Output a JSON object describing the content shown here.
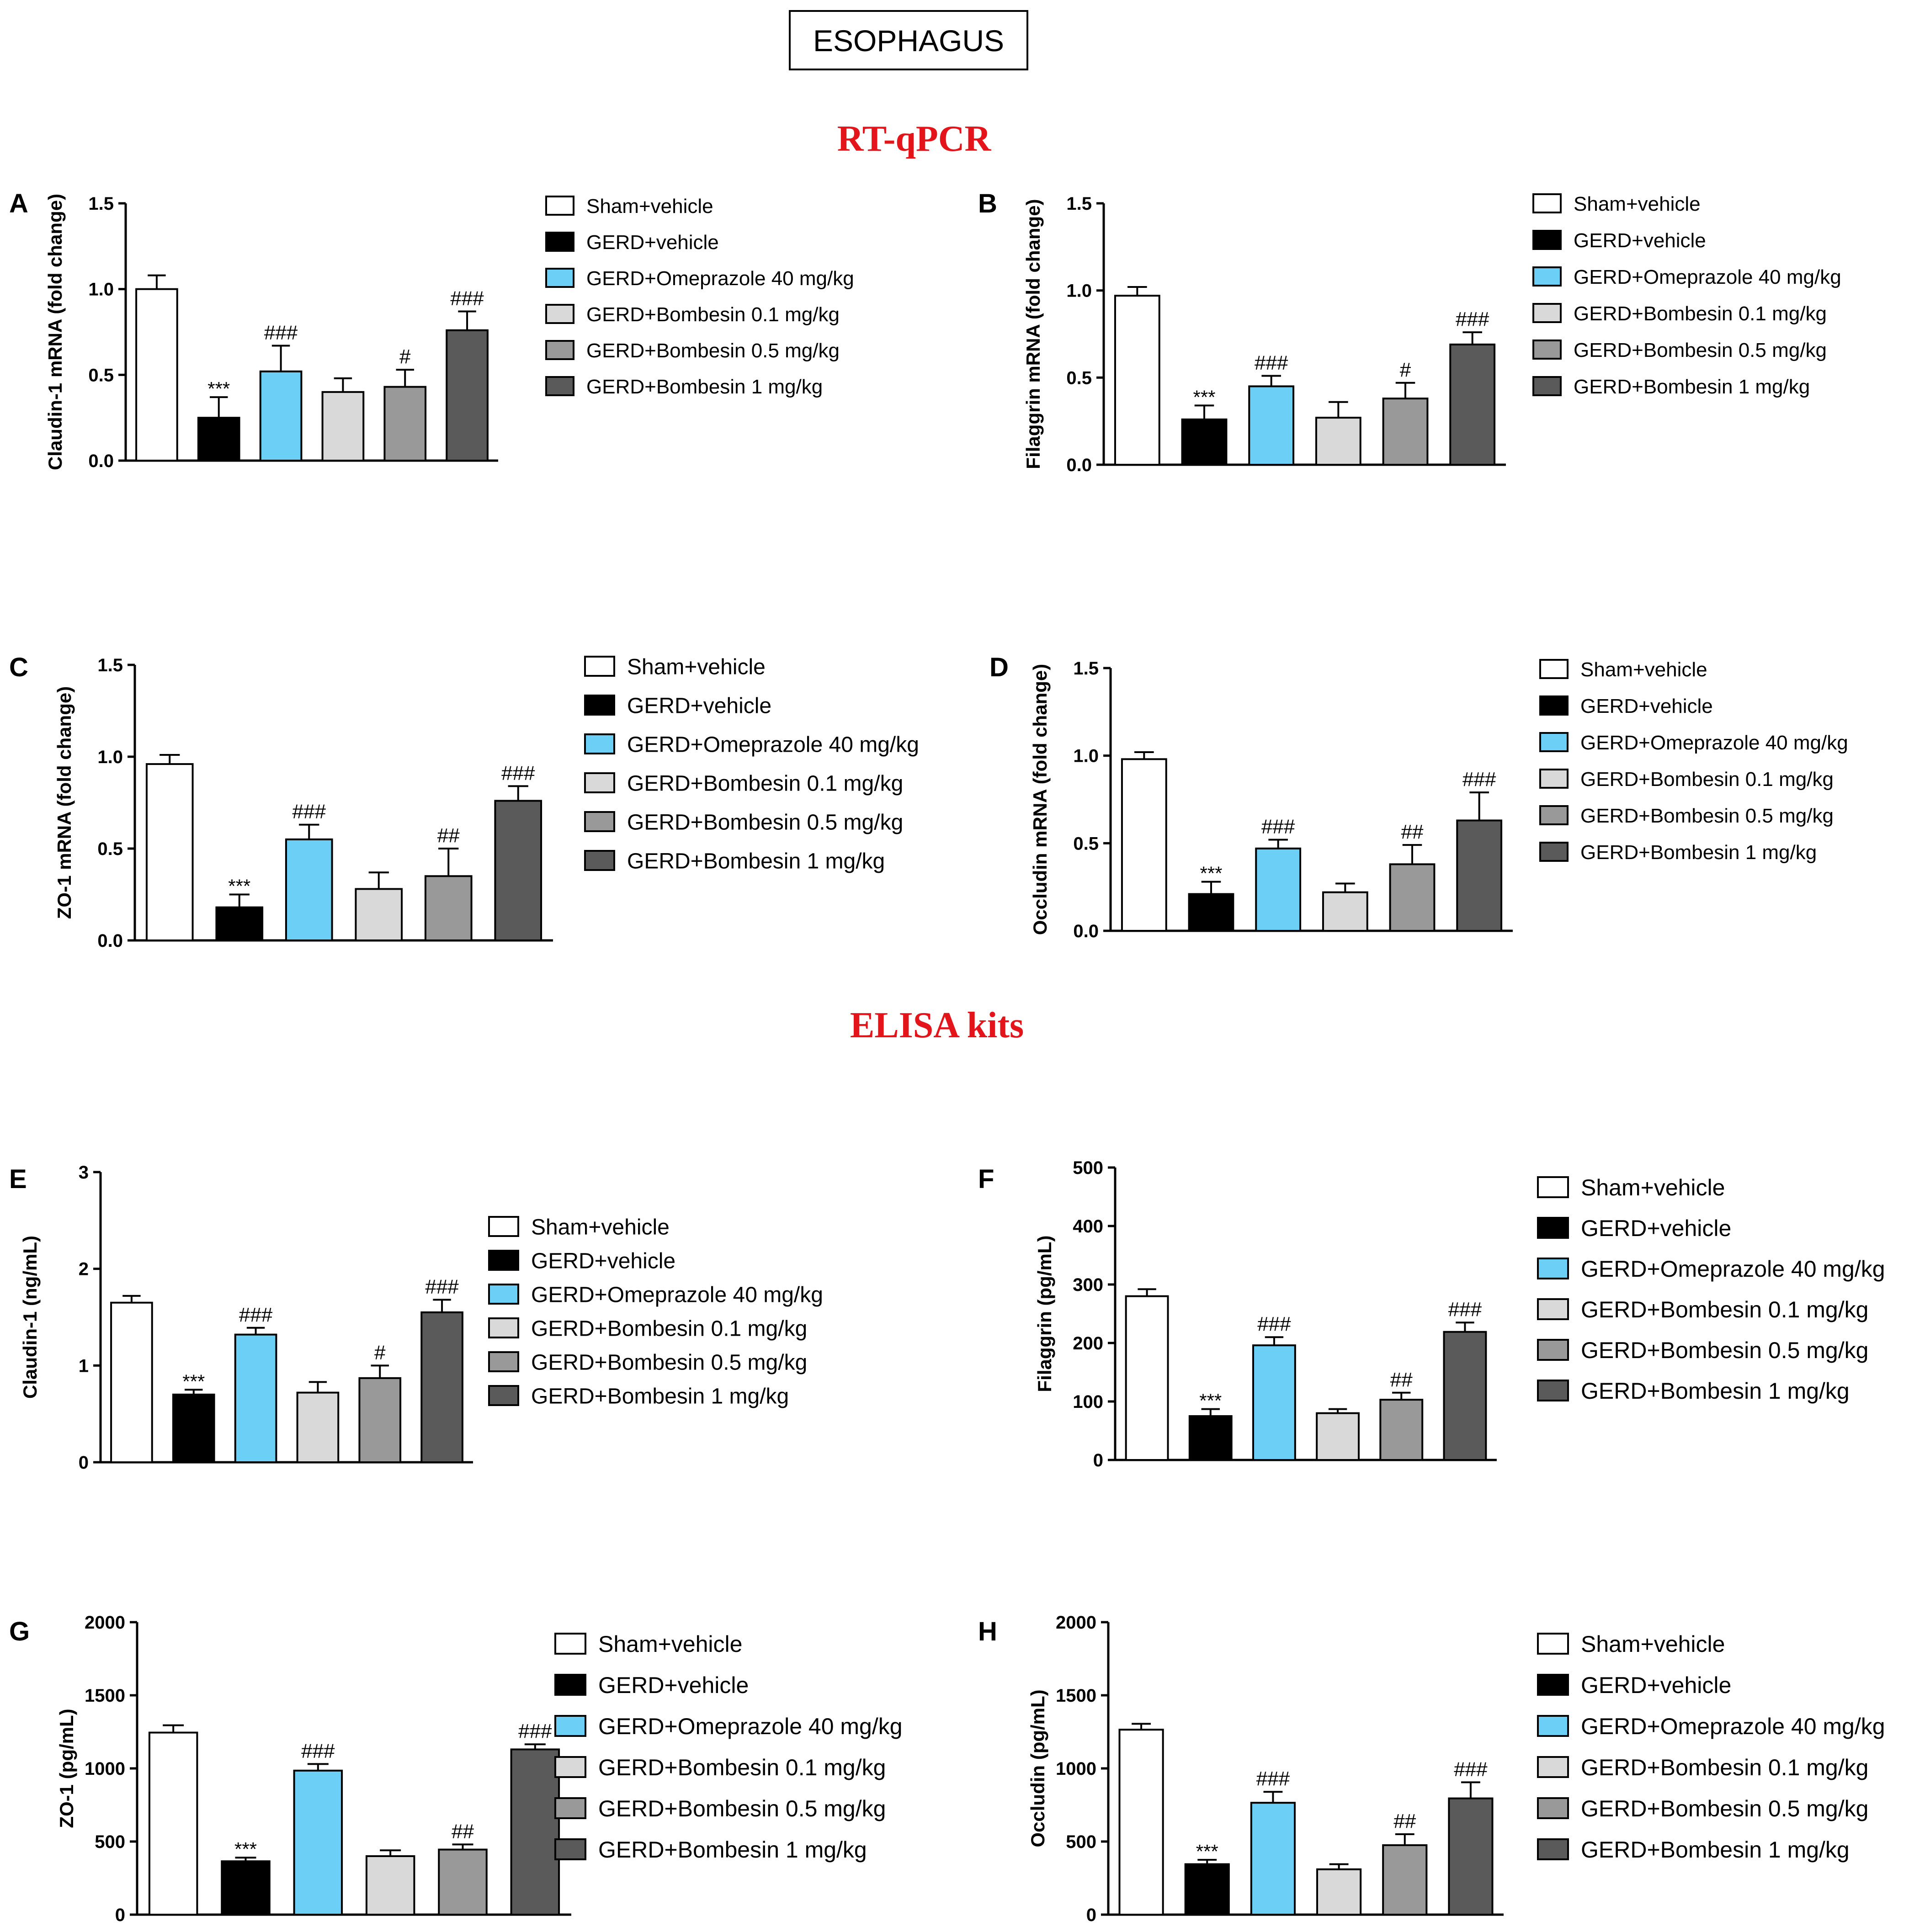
{
  "header": {
    "title": "ESOPHAGUS",
    "section_rtqpcr": "RT-qPCR",
    "section_elisa": "ELISA kits"
  },
  "colors": {
    "sham": "#ffffff",
    "gerd": "#000000",
    "omeprazole": "#6ccff6",
    "bomb01": "#d9d9d9",
    "bomb05": "#999999",
    "bomb1": "#5a5a5a",
    "section": "#e3151a"
  },
  "legend": [
    "Sham+vehicle",
    "GERD+vehicle",
    "GERD+Omeprazole 40 mg/kg",
    "GERD+Bombesin 0.1 mg/kg",
    "GERD+Bombesin 0.5 mg/kg",
    "GERD+Bombesin 1 mg/kg"
  ],
  "chart_data": [
    {
      "panel": "A",
      "type": "bar",
      "ylabel": "Claudin-1 mRNA (fold change)",
      "ylim": [
        0,
        1.5
      ],
      "yticks": [
        "0.0",
        "0.5",
        "1.0",
        "1.5"
      ],
      "categories": [
        "Sham+vehicle",
        "GERD+vehicle",
        "GERD+Omeprazole 40 mg/kg",
        "GERD+Bombesin 0.1 mg/kg",
        "GERD+Bombesin 0.5 mg/kg",
        "GERD+Bombesin 1 mg/kg"
      ],
      "values": [
        1.0,
        0.25,
        0.52,
        0.4,
        0.43,
        0.76
      ],
      "errors": [
        0.08,
        0.12,
        0.15,
        0.08,
        0.1,
        0.11
      ],
      "annotations": [
        "",
        "***",
        "###",
        "",
        "#",
        "###"
      ]
    },
    {
      "panel": "B",
      "type": "bar",
      "ylabel": "Filaggrin mRNA (fold change)",
      "ylim": [
        0,
        1.5
      ],
      "yticks": [
        "0.0",
        "0.5",
        "1.0",
        "1.5"
      ],
      "categories": [
        "Sham+vehicle",
        "GERD+vehicle",
        "GERD+Omeprazole 40 mg/kg",
        "GERD+Bombesin 0.1 mg/kg",
        "GERD+Bombesin 0.5 mg/kg",
        "GERD+Bombesin 1 mg/kg"
      ],
      "values": [
        0.97,
        0.26,
        0.45,
        0.27,
        0.38,
        0.69
      ],
      "errors": [
        0.05,
        0.08,
        0.06,
        0.09,
        0.09,
        0.07
      ],
      "annotations": [
        "",
        "***",
        "###",
        "",
        "#",
        "###"
      ]
    },
    {
      "panel": "C",
      "type": "bar",
      "ylabel": "ZO-1 mRNA (fold change)",
      "ylim": [
        0,
        1.5
      ],
      "yticks": [
        "0.0",
        "0.5",
        "1.0",
        "1.5"
      ],
      "categories": [
        "Sham+vehicle",
        "GERD+vehicle",
        "GERD+Omeprazole 40 mg/kg",
        "GERD+Bombesin 0.1 mg/kg",
        "GERD+Bombesin 0.5 mg/kg",
        "GERD+Bombesin 1 mg/kg"
      ],
      "values": [
        0.96,
        0.18,
        0.55,
        0.28,
        0.35,
        0.76
      ],
      "errors": [
        0.05,
        0.07,
        0.08,
        0.09,
        0.15,
        0.08
      ],
      "annotations": [
        "",
        "***",
        "###",
        "",
        "##",
        "###"
      ]
    },
    {
      "panel": "D",
      "type": "bar",
      "ylabel": "Occludin mRNA (fold change)",
      "ylim": [
        0,
        1.5
      ],
      "yticks": [
        "0.0",
        "0.5",
        "1.0",
        "1.5"
      ],
      "categories": [
        "Sham+vehicle",
        "GERD+vehicle",
        "GERD+Omeprazole 40 mg/kg",
        "GERD+Bombesin 0.1 mg/kg",
        "GERD+Bombesin 0.5 mg/kg",
        "GERD+Bombesin 1 mg/kg"
      ],
      "values": [
        0.98,
        0.21,
        0.47,
        0.22,
        0.38,
        0.63
      ],
      "errors": [
        0.04,
        0.07,
        0.05,
        0.05,
        0.11,
        0.16
      ],
      "annotations": [
        "",
        "***",
        "###",
        "",
        "##",
        "###"
      ]
    },
    {
      "panel": "E",
      "type": "bar",
      "ylabel": "Claudin-1 (ng/mL)",
      "ylim": [
        0,
        3
      ],
      "yticks": [
        "0",
        "1",
        "2",
        "3"
      ],
      "categories": [
        "Sham+vehicle",
        "GERD+vehicle",
        "GERD+Omeprazole 40 mg/kg",
        "GERD+Bombesin 0.1 mg/kg",
        "GERD+Bombesin 0.5 mg/kg",
        "GERD+Bombesin 1 mg/kg"
      ],
      "values": [
        1.65,
        0.7,
        1.32,
        0.72,
        0.87,
        1.55
      ],
      "errors": [
        0.07,
        0.05,
        0.07,
        0.11,
        0.13,
        0.13
      ],
      "annotations": [
        "",
        "***",
        "###",
        "",
        "#",
        "###"
      ]
    },
    {
      "panel": "F",
      "type": "bar",
      "ylabel": "Filaggrin (pg/mL)",
      "ylim": [
        0,
        500
      ],
      "yticks": [
        "0",
        "100",
        "200",
        "300",
        "400",
        "500"
      ],
      "categories": [
        "Sham+vehicle",
        "GERD+vehicle",
        "GERD+Omeprazole 40 mg/kg",
        "GERD+Bombesin 0.1 mg/kg",
        "GERD+Bombesin 0.5 mg/kg",
        "GERD+Bombesin 1 mg/kg"
      ],
      "values": [
        280,
        75,
        196,
        80,
        103,
        219
      ],
      "errors": [
        12,
        12,
        14,
        7,
        12,
        16
      ],
      "annotations": [
        "",
        "***",
        "###",
        "",
        "##",
        "###"
      ]
    },
    {
      "panel": "G",
      "type": "bar",
      "ylabel": "ZO-1 (pg/mL)",
      "ylim": [
        0,
        2000
      ],
      "yticks": [
        "0",
        "500",
        "1000",
        "1500",
        "2000"
      ],
      "categories": [
        "Sham+vehicle",
        "GERD+vehicle",
        "GERD+Omeprazole 40 mg/kg",
        "GERD+Bombesin 0.1 mg/kg",
        "GERD+Bombesin 0.5 mg/kg",
        "GERD+Bombesin 1 mg/kg"
      ],
      "values": [
        1245,
        365,
        985,
        400,
        445,
        1130
      ],
      "errors": [
        50,
        25,
        45,
        40,
        35,
        35
      ],
      "annotations": [
        "",
        "***",
        "###",
        "",
        "##",
        "###"
      ]
    },
    {
      "panel": "H",
      "type": "bar",
      "ylabel": "Occludin (pg/mL)",
      "ylim": [
        0,
        2000
      ],
      "yticks": [
        "0",
        "500",
        "1000",
        "1500",
        "2000"
      ],
      "categories": [
        "Sham+vehicle",
        "GERD+vehicle",
        "GERD+Omeprazole 40 mg/kg",
        "GERD+Bombesin 0.1 mg/kg",
        "GERD+Bombesin 0.5 mg/kg",
        "GERD+Bombesin 1 mg/kg"
      ],
      "values": [
        1265,
        345,
        765,
        310,
        475,
        795
      ],
      "errors": [
        40,
        30,
        75,
        35,
        75,
        110
      ],
      "annotations": [
        "",
        "***",
        "###",
        "",
        "##",
        "###"
      ]
    }
  ]
}
